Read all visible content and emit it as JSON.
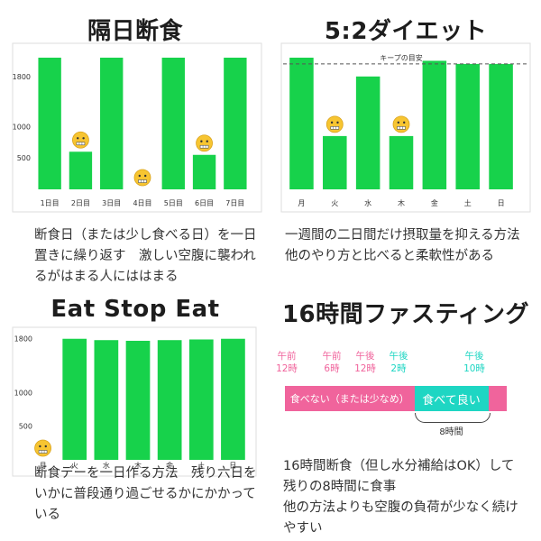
{
  "colors": {
    "bar": "#17d24b",
    "frame": "#dddddd",
    "pink": "#f0649c",
    "teal": "#1ed6c3",
    "dash": "#555555"
  },
  "panels": {
    "p1": {
      "title": "隔日断食",
      "description": "断食日（または少し食べる日）を一日\n置きに繰り返す　激しい空腹に襲われ\nるがはまる人にははまる"
    },
    "p2": {
      "title": "5:2ダイエット",
      "description": "一週間の二日間だけ摂取量を抑える方法\n他のやり方と比べると柔軟性がある"
    },
    "p3": {
      "title": "Eat Stop Eat",
      "description": "断食デーを一日作る方法　残り六日を\nいかに普段通り過ごせるかにかかって\nいる"
    },
    "p4": {
      "title": "16時間ファスティング",
      "description": "16時間断食（但し水分補給はOK）して\n残りの8時間に食事\n他の方法よりも空腹の負荷が少なく続け\nやすい"
    }
  },
  "chart_data": [
    {
      "type": "bar",
      "title": "隔日断食",
      "categories": [
        "1日目",
        "2日目",
        "3日目",
        "4日目",
        "5日目",
        "6日目",
        "7日目"
      ],
      "values": [
        2100,
        600,
        2100,
        0,
        2100,
        550,
        2100
      ],
      "yticks": [
        500,
        1000,
        1800
      ],
      "ylim": [
        0,
        2200
      ],
      "low_days_icon": "fasting-face-icon",
      "low_days": [
        "2日目",
        "4日目",
        "6日目"
      ]
    },
    {
      "type": "bar",
      "title": "5:2ダイエット",
      "categories": [
        "月",
        "火",
        "水",
        "木",
        "金",
        "土",
        "日"
      ],
      "values": [
        2100,
        850,
        1800,
        850,
        2050,
        2000,
        2000
      ],
      "ylim": [
        0,
        2200
      ],
      "reference_line": {
        "label": "キープの目安",
        "value": 2000,
        "style": "dashed"
      },
      "low_days_icon": "fasting-face-icon",
      "low_days": [
        "火",
        "木"
      ]
    },
    {
      "type": "bar",
      "title": "Eat Stop Eat",
      "categories": [
        "月",
        "火",
        "水",
        "木",
        "金",
        "土",
        "日"
      ],
      "values": [
        0,
        1800,
        1780,
        1770,
        1780,
        1790,
        1800
      ],
      "yticks": [
        500,
        1000,
        1800
      ],
      "ylim": [
        0,
        1850
      ],
      "low_days_icon": "fasting-face-icon",
      "low_days": [
        "月"
      ]
    },
    {
      "type": "timeline",
      "title": "16時間ファスティング",
      "time_labels": [
        {
          "text": "午前\n12時",
          "color": "pink"
        },
        {
          "text": "午前\n6時",
          "color": "pink"
        },
        {
          "text": "午後\n12時",
          "color": "pink"
        },
        {
          "text": "午後\n2時",
          "color": "teal"
        },
        {
          "text": "午後\n10時",
          "color": "teal"
        }
      ],
      "segments": [
        {
          "label": "食べない（または少なめ）",
          "hours": 14,
          "color": "pink"
        },
        {
          "label": "食べて良い",
          "hours": 8,
          "color": "teal"
        },
        {
          "label": "",
          "hours": 2,
          "color": "pink"
        }
      ],
      "span_label": "8時間"
    }
  ]
}
